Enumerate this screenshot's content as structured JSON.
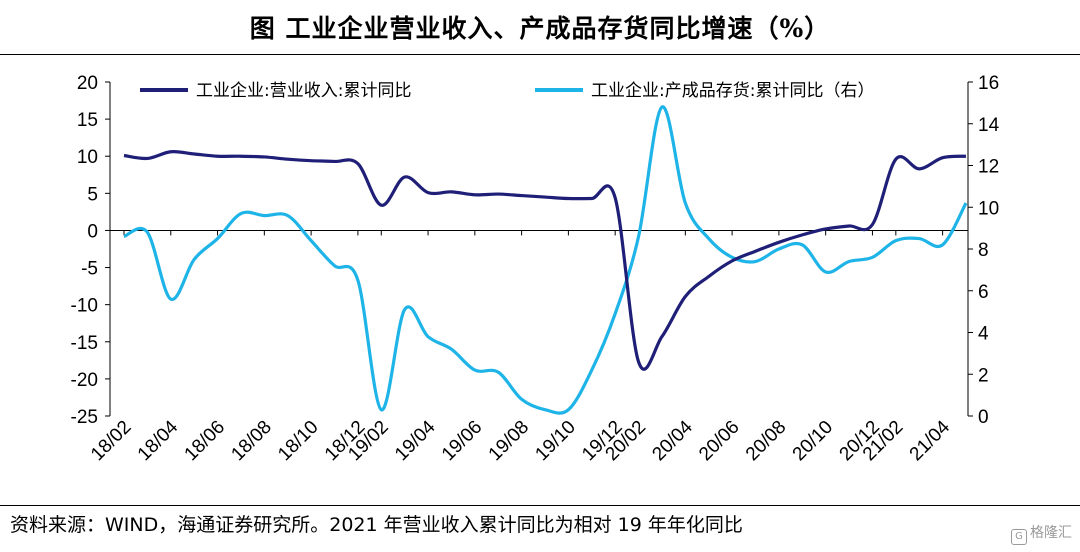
{
  "title": "图  工业企业营业收入、产成品存货同比增速（%）",
  "source": "资料来源：WIND，海通证券研究所。2021 年营业收入累计同比为相对 19 年年化同比",
  "watermark": "格隆汇",
  "chart_data": {
    "type": "line",
    "x": [
      "18/02",
      "18/03",
      "18/04",
      "18/05",
      "18/06",
      "18/07",
      "18/08",
      "18/09",
      "18/10",
      "18/11",
      "18/12",
      "19/02",
      "19/03",
      "19/04",
      "19/05",
      "19/06",
      "19/07",
      "19/08",
      "19/09",
      "19/10",
      "19/11",
      "19/12",
      "20/02",
      "20/03",
      "20/04",
      "20/05",
      "20/06",
      "20/07",
      "20/08",
      "20/09",
      "20/10",
      "20/11",
      "20/12",
      "21/02",
      "21/03",
      "21/04",
      "21/05"
    ],
    "x_tick_labels": [
      "18/02",
      "18/04",
      "18/06",
      "18/08",
      "18/10",
      "18/12",
      "19/02",
      "19/04",
      "19/06",
      "19/08",
      "19/10",
      "19/12",
      "20/02",
      "20/04",
      "20/06",
      "20/08",
      "20/10",
      "20/12",
      "21/02",
      "21/04"
    ],
    "y_left": {
      "ticks": [
        20,
        15,
        10,
        5,
        0,
        -5,
        -10,
        -15,
        -20,
        -25
      ],
      "ylim": [
        -25,
        20
      ]
    },
    "y_right": {
      "ticks": [
        16,
        14,
        12,
        10,
        8,
        6,
        4,
        2,
        0
      ],
      "ylim": [
        0,
        16
      ]
    },
    "grid": false,
    "legend_position": "top",
    "series": [
      {
        "name": "工业企业:营业收入:累计同比",
        "axis": "left",
        "color": "#1f1f78",
        "values": [
          10.1,
          9.7,
          10.6,
          10.3,
          10.0,
          10.0,
          9.9,
          9.6,
          9.4,
          9.3,
          9.0,
          3.4,
          7.2,
          5.1,
          5.2,
          4.8,
          4.9,
          4.7,
          4.5,
          4.3,
          4.3,
          4.4,
          -17.7,
          -14.3,
          -8.9,
          -6.2,
          -4.1,
          -2.8,
          -1.6,
          -0.6,
          0.2,
          0.6,
          0.8,
          9.6,
          8.3,
          9.8,
          10.0
        ]
      },
      {
        "name": "工业企业:产成品存货:累计同比（右）",
        "axis": "right",
        "color": "#1eb4e8",
        "values": [
          8.6,
          8.8,
          5.6,
          7.5,
          8.5,
          9.7,
          9.6,
          9.6,
          8.4,
          7.2,
          6.5,
          0.3,
          5.1,
          3.8,
          3.2,
          2.2,
          2.1,
          0.8,
          0.3,
          0.3,
          2.2,
          4.9,
          8.6,
          14.8,
          10.2,
          8.5,
          7.6,
          7.4,
          8.0,
          8.2,
          6.9,
          7.4,
          7.6,
          8.4,
          8.5,
          8.2,
          10.2
        ]
      }
    ]
  }
}
